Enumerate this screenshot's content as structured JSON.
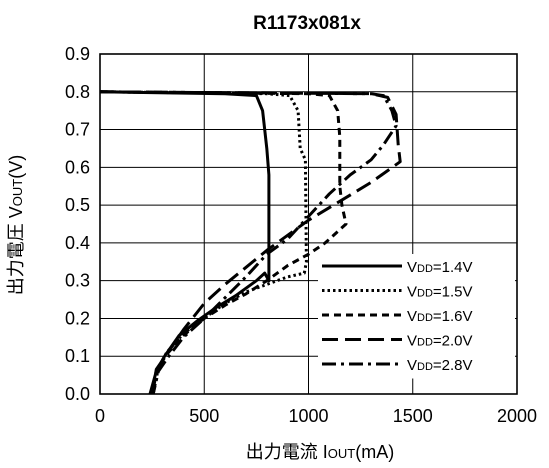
{
  "chart_data": {
    "type": "line",
    "title": "R1173x081x",
    "xlabel": "出力電流 IOUT(mA)",
    "xlabel_main": "出力電流 I",
    "xlabel_sub": "OUT",
    "xlabel_unit": "(mA)",
    "ylabel": "出力電圧 VOUT(V)",
    "ylabel_main": "出力電圧 V",
    "ylabel_sub": "OUT",
    "ylabel_unit": "(V)",
    "xlim": [
      0,
      2000
    ],
    "ylim": [
      0,
      0.9
    ],
    "xticks": [
      "0",
      "500",
      "1000",
      "1500",
      "2000"
    ],
    "yticks": [
      "0.0",
      "0.1",
      "0.2",
      "0.3",
      "0.4",
      "0.5",
      "0.6",
      "0.7",
      "0.8",
      "0.9"
    ],
    "grid": true,
    "legend_position": "bottom-right",
    "series": [
      {
        "name": "VDD=1.4V",
        "label_main": "V",
        "label_sub": "DD",
        "label_tail": "=1.4V",
        "dash": "solid",
        "points": [
          [
            0,
            0.8
          ],
          [
            600,
            0.795
          ],
          [
            750,
            0.79
          ],
          [
            780,
            0.75
          ],
          [
            800,
            0.65
          ],
          [
            810,
            0.58
          ],
          [
            810,
            0.3
          ],
          [
            790,
            0.32
          ],
          [
            750,
            0.3
          ],
          [
            650,
            0.26
          ],
          [
            560,
            0.23
          ],
          [
            470,
            0.195
          ],
          [
            380,
            0.155
          ],
          [
            310,
            0.1
          ],
          [
            270,
            0.06
          ],
          [
            240,
            0.0
          ]
        ]
      },
      {
        "name": "VDD=1.5V",
        "label_main": "V",
        "label_sub": "DD",
        "label_tail": "=1.5V",
        "dash": "dotted",
        "points": [
          [
            0,
            0.8
          ],
          [
            800,
            0.795
          ],
          [
            910,
            0.79
          ],
          [
            950,
            0.75
          ],
          [
            960,
            0.65
          ],
          [
            985,
            0.62
          ],
          [
            990,
            0.35
          ],
          [
            980,
            0.32
          ],
          [
            900,
            0.31
          ],
          [
            800,
            0.29
          ],
          [
            700,
            0.27
          ],
          [
            600,
            0.24
          ],
          [
            510,
            0.205
          ],
          [
            400,
            0.16
          ],
          [
            320,
            0.11
          ],
          [
            280,
            0.07
          ],
          [
            255,
            0.0
          ]
        ]
      },
      {
        "name": "VDD=1.6V",
        "label_main": "V",
        "label_sub": "DD",
        "label_tail": "=1.6V",
        "dash": "dashed",
        "points": [
          [
            0,
            0.8
          ],
          [
            1000,
            0.795
          ],
          [
            1100,
            0.79
          ],
          [
            1140,
            0.75
          ],
          [
            1150,
            0.68
          ],
          [
            1150,
            0.55
          ],
          [
            1160,
            0.5
          ],
          [
            1180,
            0.45
          ],
          [
            1080,
            0.4
          ],
          [
            1000,
            0.37
          ],
          [
            900,
            0.34
          ],
          [
            800,
            0.3
          ],
          [
            700,
            0.265
          ],
          [
            600,
            0.235
          ],
          [
            500,
            0.2
          ],
          [
            400,
            0.155
          ],
          [
            320,
            0.105
          ],
          [
            275,
            0.065
          ],
          [
            250,
            0.0
          ]
        ]
      },
      {
        "name": "VDD=2.0V",
        "label_main": "V",
        "label_sub": "DD",
        "label_tail": "=2.0V",
        "dash": "longdash",
        "points": [
          [
            0,
            0.8
          ],
          [
            1300,
            0.795
          ],
          [
            1380,
            0.785
          ],
          [
            1420,
            0.74
          ],
          [
            1430,
            0.66
          ],
          [
            1440,
            0.615
          ],
          [
            1300,
            0.56
          ],
          [
            1150,
            0.51
          ],
          [
            1000,
            0.46
          ],
          [
            900,
            0.42
          ],
          [
            800,
            0.38
          ],
          [
            700,
            0.335
          ],
          [
            600,
            0.29
          ],
          [
            500,
            0.24
          ],
          [
            400,
            0.17
          ],
          [
            320,
            0.105
          ],
          [
            270,
            0.065
          ],
          [
            250,
            0.0
          ]
        ]
      },
      {
        "name": "VDD=2.8V",
        "label_main": "V",
        "label_sub": "DD",
        "label_tail": "=2.8V",
        "dash": "dashdot",
        "points": [
          [
            0,
            0.8
          ],
          [
            1300,
            0.795
          ],
          [
            1360,
            0.79
          ],
          [
            1400,
            0.75
          ],
          [
            1420,
            0.71
          ],
          [
            1360,
            0.66
          ],
          [
            1300,
            0.62
          ],
          [
            1200,
            0.58
          ],
          [
            1100,
            0.53
          ],
          [
            1000,
            0.47
          ],
          [
            900,
            0.41
          ],
          [
            800,
            0.37
          ],
          [
            700,
            0.31
          ],
          [
            600,
            0.255
          ],
          [
            500,
            0.2
          ],
          [
            400,
            0.15
          ],
          [
            330,
            0.1
          ],
          [
            280,
            0.06
          ],
          [
            255,
            0.0
          ]
        ]
      }
    ]
  }
}
